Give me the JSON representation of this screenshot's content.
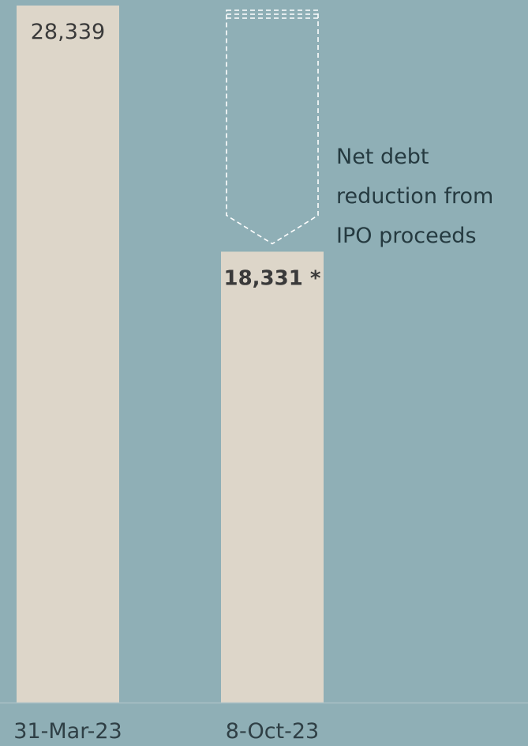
{
  "chart_data": {
    "type": "bar",
    "categories": [
      "31-Mar-23",
      "8-Oct-23"
    ],
    "values": [
      28339,
      18331
    ],
    "value_labels": [
      "28,339",
      "18,331 *"
    ],
    "ylim": [
      0,
      28339
    ],
    "grid": false,
    "annotation": {
      "lines": [
        "Net debt",
        "reduction from",
        "IPO proceeds"
      ],
      "category": "8-Oct-23",
      "from_value": 28339,
      "to_value": 18331
    }
  },
  "colors": {
    "background": "#8fafb6",
    "bar": "#ddd6c9",
    "dashed_outline": "#ffffff",
    "axis": "#a9c0c5"
  }
}
